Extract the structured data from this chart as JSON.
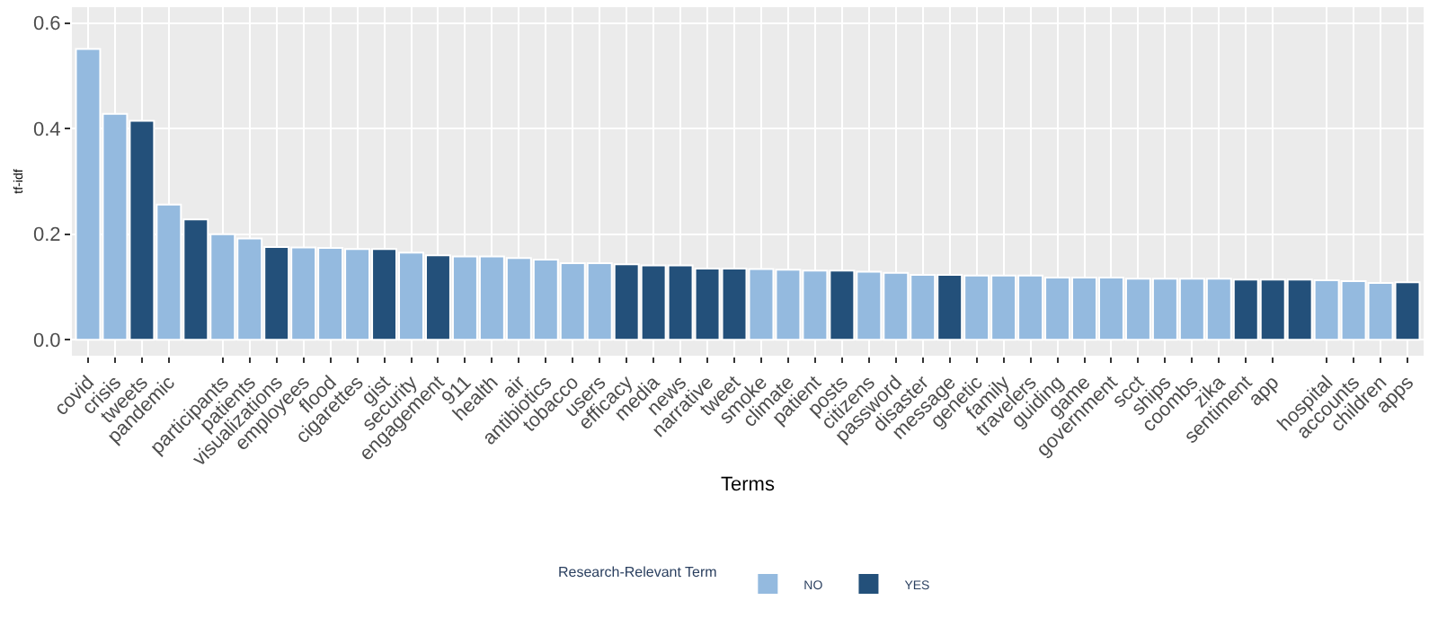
{
  "chart_data": {
    "type": "bar",
    "xlabel": "Terms",
    "ylabel": "tf-idf",
    "legend_title": "Research-Relevant Term",
    "categories": [
      "covid",
      "crisis",
      "tweets",
      "pandemic",
      null,
      "participants",
      "patients",
      "visualizations",
      "employees",
      "flood",
      "cigarettes",
      "gist",
      "security",
      "engagement",
      "911",
      "health",
      "air",
      "antibiotics",
      "tobacco",
      "users",
      "efficacy",
      "media",
      "news",
      "narrative",
      "tweet",
      "smoke",
      "climate",
      "patient",
      "posts",
      "citizens",
      "password",
      "disaster",
      "message",
      "genetic",
      "family",
      "travelers",
      "guiding",
      "game",
      "government",
      "scct",
      "ships",
      "coombs",
      "zika",
      "sentiment",
      "app",
      null,
      "hospital",
      "accounts",
      "children",
      "apps"
    ],
    "series": [
      {
        "name": "NO",
        "color": "#94badf",
        "values": [
          0.551,
          0.428,
          null,
          0.256,
          null,
          0.2,
          0.192,
          null,
          0.175,
          0.174,
          0.172,
          null,
          0.165,
          null,
          0.158,
          0.158,
          0.155,
          0.152,
          0.145,
          0.145,
          null,
          null,
          null,
          null,
          null,
          0.134,
          0.133,
          0.131,
          null,
          0.129,
          0.127,
          0.123,
          null,
          0.122,
          0.122,
          0.122,
          0.118,
          0.118,
          0.118,
          0.116,
          0.116,
          0.116,
          0.116,
          null,
          null,
          null,
          0.113,
          0.111,
          0.108,
          null
        ]
      },
      {
        "name": "YES",
        "color": "#23507a",
        "values": [
          null,
          null,
          0.415,
          null,
          0.228,
          null,
          null,
          0.176,
          null,
          null,
          null,
          0.172,
          null,
          0.16,
          null,
          null,
          null,
          null,
          null,
          null,
          0.143,
          0.141,
          0.141,
          0.135,
          0.135,
          null,
          null,
          null,
          0.131,
          null,
          null,
          null,
          0.123,
          null,
          null,
          null,
          null,
          null,
          null,
          null,
          null,
          null,
          null,
          0.114,
          0.114,
          0.114,
          null,
          null,
          null,
          0.109
        ]
      }
    ],
    "ylim": [
      -0.03,
      0.63
    ],
    "yticks": [
      {
        "value": 0,
        "label": "0.0"
      },
      {
        "value": 0.2,
        "label": "0.2"
      },
      {
        "value": 0.4,
        "label": "0.4"
      },
      {
        "value": 0.6,
        "label": "0.6"
      }
    ],
    "grid": true,
    "legend": "bottom"
  }
}
